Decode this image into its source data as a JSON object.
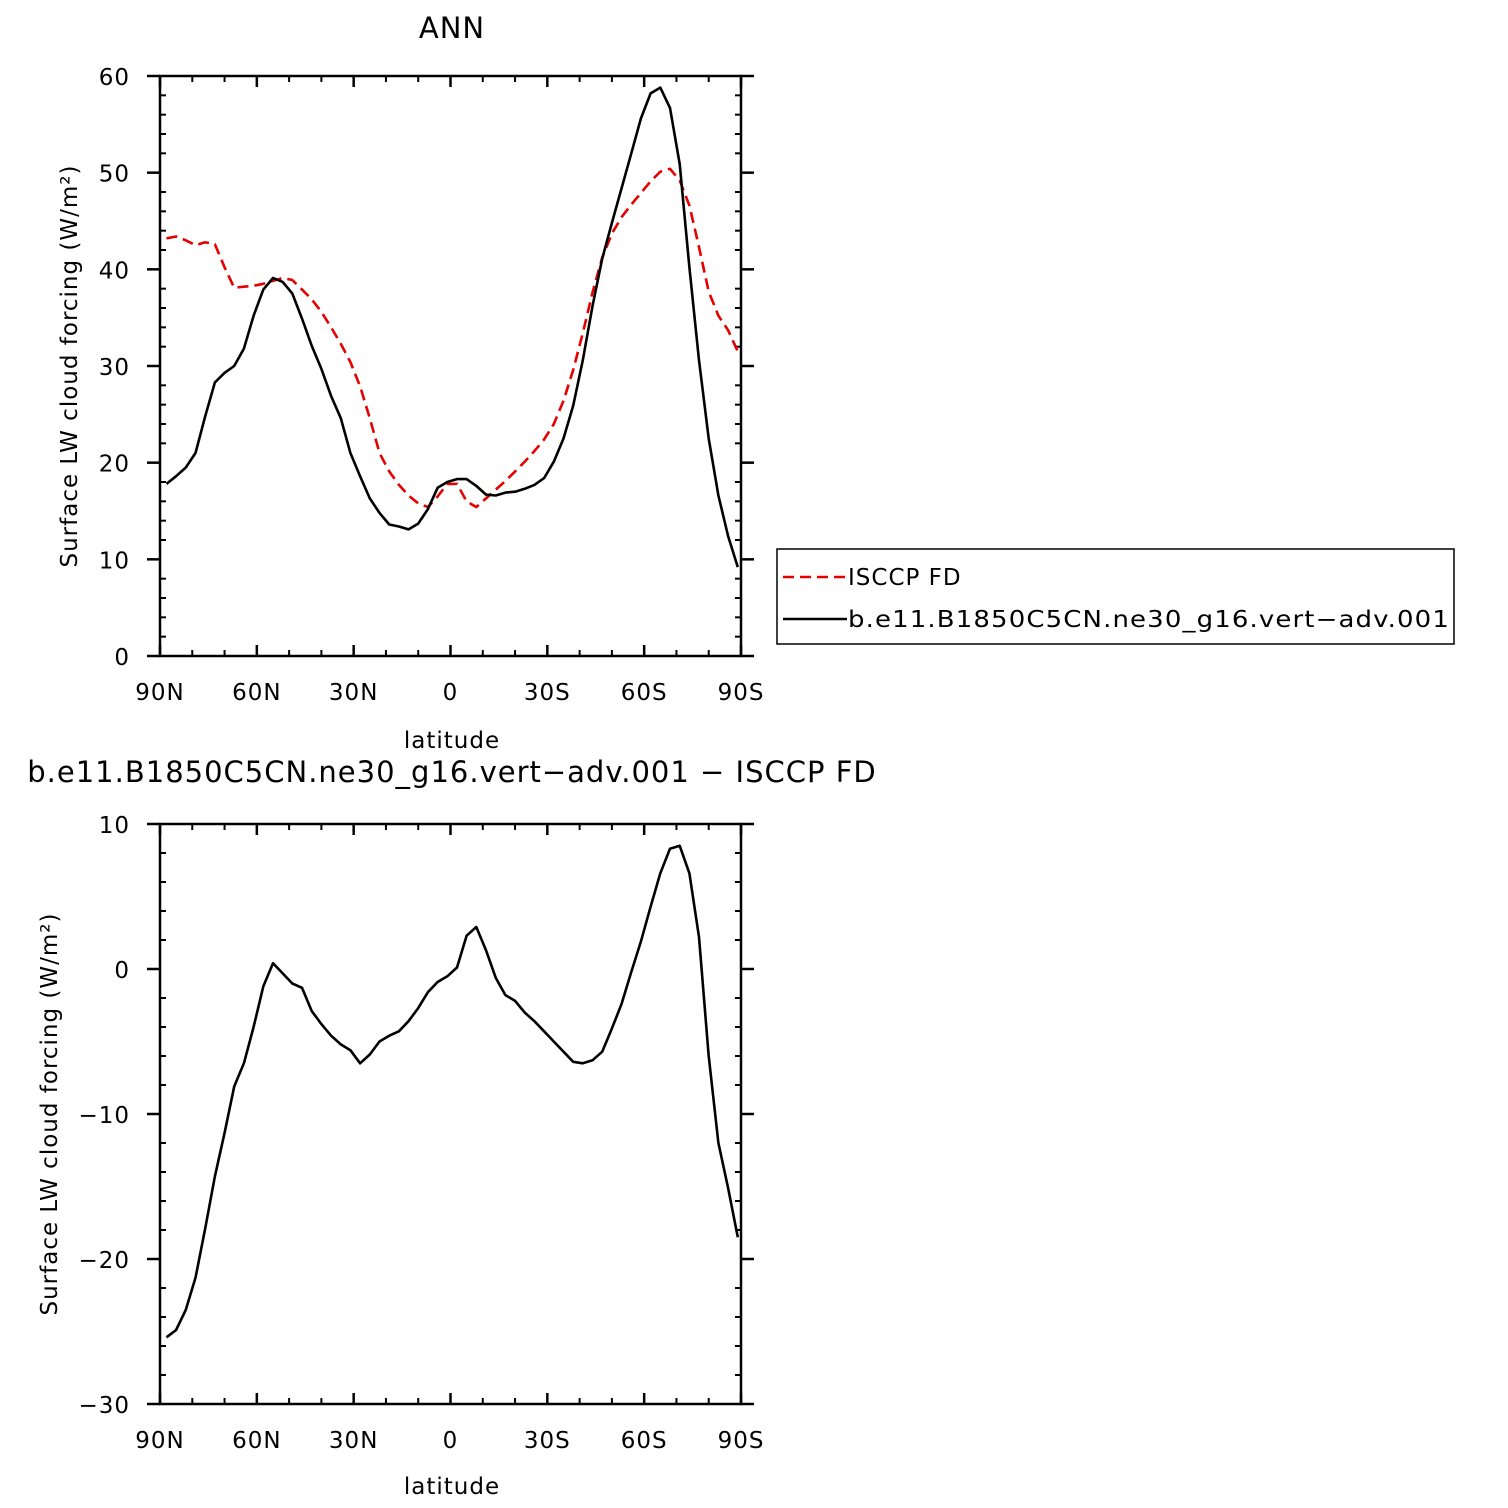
{
  "chart_data": [
    {
      "type": "line",
      "title": "ANN",
      "xlabel": "latitude",
      "ylabel": "Surface LW cloud forcing (W/m²)",
      "xlim": [
        90,
        -90
      ],
      "ylim": [
        0,
        60
      ],
      "x_ticks": [
        90,
        60,
        30,
        0,
        -30,
        -60,
        -90
      ],
      "x_tick_labels": [
        "90N",
        "60N",
        "30N",
        "0",
        "30S",
        "60S",
        "90S"
      ],
      "y_ticks": [
        0,
        10,
        20,
        30,
        40,
        50,
        60
      ],
      "y_tick_labels": [
        "0",
        "10",
        "20",
        "30",
        "40",
        "50",
        "60"
      ],
      "grid": false,
      "legend_position": "right",
      "series": [
        {
          "name": "ISCCP FD",
          "color": "#e60000",
          "style": "dashed",
          "x": [
            88,
            85,
            82,
            79,
            76,
            73,
            70,
            67,
            64,
            61,
            58,
            55,
            52,
            49,
            46,
            43,
            40,
            37,
            34,
            31,
            28,
            25,
            22,
            19,
            16,
            13,
            10,
            7,
            4,
            1,
            -2,
            -5,
            -8,
            -11,
            -14,
            -17,
            -20,
            -23,
            -26,
            -29,
            -32,
            -35,
            -38,
            -41,
            -44,
            -47,
            -50,
            -53,
            -56,
            -59,
            -62,
            -65,
            -68,
            -71,
            -74,
            -77,
            -80,
            -83,
            -86,
            -89
          ],
          "y": [
            43.2,
            43.4,
            43.0,
            42.5,
            42.8,
            42.6,
            40.2,
            38.1,
            38.2,
            38.3,
            38.5,
            38.8,
            39.1,
            38.9,
            37.9,
            36.9,
            35.6,
            34.0,
            32.3,
            30.4,
            27.9,
            24.6,
            21.0,
            19.1,
            17.7,
            16.6,
            15.8,
            15.4,
            16.5,
            17.8,
            17.8,
            16.0,
            15.4,
            16.3,
            17.2,
            18.1,
            19.1,
            20.1,
            21.2,
            22.4,
            24.0,
            26.4,
            29.6,
            33.4,
            37.6,
            41.2,
            43.7,
            45.4,
            46.7,
            47.9,
            49.1,
            50.1,
            50.4,
            49.2,
            46.6,
            42.3,
            37.7,
            35.2,
            33.7,
            31.5
          ]
        },
        {
          "name": "b.e11.B1850C5CN.ne30_g16.vert−adv.001",
          "color": "#000000",
          "style": "solid",
          "x": [
            88,
            85,
            82,
            79,
            76,
            73,
            70,
            67,
            64,
            61,
            58,
            55,
            52,
            49,
            46,
            43,
            40,
            37,
            34,
            31,
            28,
            25,
            22,
            19,
            16,
            13,
            10,
            7,
            4,
            1,
            -2,
            -5,
            -8,
            -11,
            -14,
            -17,
            -20,
            -23,
            -26,
            -29,
            -32,
            -35,
            -38,
            -41,
            -44,
            -47,
            -50,
            -53,
            -56,
            -59,
            -62,
            -65,
            -68,
            -71,
            -74,
            -77,
            -80,
            -83,
            -86,
            -89
          ],
          "y": [
            17.8,
            18.6,
            19.5,
            21.0,
            24.8,
            28.3,
            29.3,
            30.0,
            31.8,
            35.2,
            37.9,
            39.1,
            38.7,
            37.5,
            34.9,
            32.1,
            29.7,
            26.9,
            24.6,
            21.0,
            18.6,
            16.3,
            14.8,
            13.6,
            13.4,
            13.1,
            13.7,
            15.2,
            17.4,
            18.0,
            18.3,
            18.3,
            17.6,
            16.7,
            16.6,
            16.9,
            17.0,
            17.3,
            17.7,
            18.4,
            20.1,
            22.5,
            25.9,
            30.6,
            36.2,
            41.1,
            44.8,
            48.4,
            52.0,
            55.6,
            58.2,
            58.8,
            56.7,
            50.9,
            40.2,
            30.6,
            22.5,
            16.6,
            12.4,
            9.2
          ]
        }
      ]
    },
    {
      "type": "line",
      "title": "b.e11.B1850C5CN.ne30_g16.vert−adv.001 − ISCCP FD",
      "xlabel": "latitude",
      "ylabel": "Surface LW cloud forcing (W/m²)",
      "xlim": [
        90,
        -90
      ],
      "ylim": [
        -30,
        10
      ],
      "x_ticks": [
        90,
        60,
        30,
        0,
        -30,
        -60,
        -90
      ],
      "x_tick_labels": [
        "90N",
        "60N",
        "30N",
        "0",
        "30S",
        "60S",
        "90S"
      ],
      "y_ticks": [
        -30,
        -20,
        -10,
        0,
        10
      ],
      "y_tick_labels": [
        "−30",
        "−20",
        "−10",
        "0",
        "10"
      ],
      "grid": false,
      "series": [
        {
          "color": "#000000",
          "style": "solid",
          "x": [
            88,
            85,
            82,
            79,
            76,
            73,
            70,
            67,
            64,
            61,
            58,
            55,
            52,
            49,
            46,
            43,
            40,
            37,
            34,
            31,
            28,
            25,
            22,
            19,
            16,
            13,
            10,
            7,
            4,
            1,
            -2,
            -5,
            -8,
            -11,
            -14,
            -17,
            -20,
            -23,
            -26,
            -29,
            -32,
            -35,
            -38,
            -41,
            -44,
            -47,
            -50,
            -53,
            -56,
            -59,
            -62,
            -65,
            -68,
            -71,
            -74,
            -77,
            -80,
            -83,
            -86,
            -89
          ],
          "y": [
            -25.4,
            -24.9,
            -23.5,
            -21.3,
            -17.9,
            -14.3,
            -11.3,
            -8.1,
            -6.5,
            -4.0,
            -1.2,
            0.4,
            -0.3,
            -1.0,
            -1.3,
            -2.9,
            -3.8,
            -4.6,
            -5.2,
            -5.6,
            -6.5,
            -5.9,
            -5.0,
            -4.6,
            -4.3,
            -3.6,
            -2.7,
            -1.6,
            -0.9,
            -0.5,
            0.1,
            2.3,
            2.9,
            1.3,
            -0.6,
            -1.8,
            -2.2,
            -3.0,
            -3.6,
            -4.3,
            -5.0,
            -5.7,
            -6.4,
            -6.5,
            -6.3,
            -5.7,
            -4.1,
            -2.4,
            -0.2,
            1.9,
            4.3,
            6.6,
            8.3,
            8.5,
            6.6,
            2.2,
            -6.0,
            -12.0,
            -15.1,
            -18.5
          ]
        }
      ]
    }
  ],
  "legend": {
    "items": [
      {
        "label": "ISCCP FD",
        "color": "#e60000",
        "style": "dashed"
      },
      {
        "label": "b.e11.B1850C5CN.ne30_g16.vert−adv.001",
        "color": "#000000",
        "style": "solid"
      }
    ]
  }
}
